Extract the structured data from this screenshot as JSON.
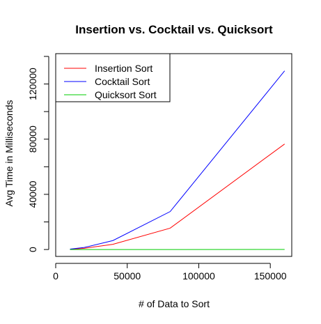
{
  "chart_data": {
    "type": "line",
    "title": "Insertion vs. Cocktail vs. Quicksort",
    "xlabel": "# of Data to Sort",
    "ylabel": "Avg Time in Milliseconds",
    "xlim": [
      0,
      165000
    ],
    "ylim": [
      -5000,
      142000
    ],
    "xticks": [
      0,
      50000,
      100000,
      150000
    ],
    "xtick_labels": [
      "0",
      "50000",
      "100000",
      "150000"
    ],
    "yticks": [
      0,
      40000,
      80000,
      120000
    ],
    "ytick_labels": [
      "0",
      "40000",
      "80000",
      "120000"
    ],
    "grid": false,
    "legend_position": "top-left",
    "x": [
      10000,
      20000,
      40000,
      80000,
      160000
    ],
    "series": [
      {
        "name": "Insertion Sort",
        "color": "#ff0000",
        "values": [
          200,
          900,
          3800,
          15500,
          76500
        ]
      },
      {
        "name": "Cocktail Sort",
        "color": "#0000ff",
        "values": [
          300,
          1500,
          6500,
          27500,
          129500
        ]
      },
      {
        "name": "Quicksort Sort",
        "color": "#00cc00",
        "values": [
          2,
          4,
          8,
          15,
          30
        ]
      }
    ]
  }
}
